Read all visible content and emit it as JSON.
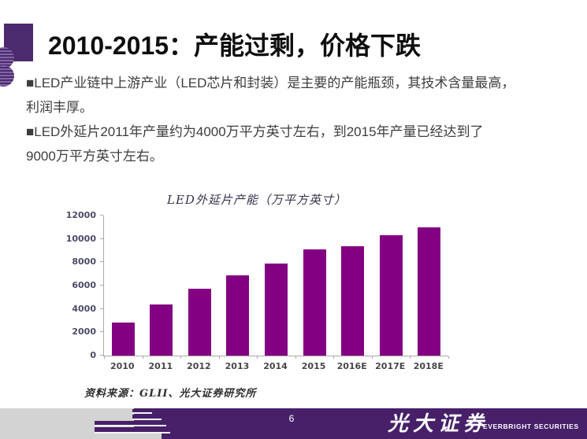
{
  "slide": {
    "title": "2010-2015：产能过剩，价格下跌"
  },
  "body": {
    "lines": [
      "■LED产业链中上游产业（LED芯片和封装）是主要的产能瓶颈，其技术含量最高，",
      "利润丰厚。",
      "■LED外延片2011年产量约为4000万平方英寸左右，到2015年产量已经达到了",
      "9000万平方英寸左右。"
    ]
  },
  "chart_data": {
    "type": "bar",
    "title": "LED外延片产能（万平方英寸）",
    "categories": [
      "2010",
      "2011",
      "2012",
      "2013",
      "2014",
      "2015",
      "2016E",
      "2017E",
      "2018E"
    ],
    "values": [
      2850,
      4400,
      5700,
      6900,
      7900,
      9100,
      9400,
      10300,
      11000
    ],
    "xlabel": "",
    "ylabel": "",
    "ylim": [
      0,
      12000
    ],
    "ytick_step": 2000,
    "bar_color": "#830082",
    "grid": false,
    "legend_position": "none"
  },
  "source_note": "资料来源：GLII、光大证券研究所",
  "footer": {
    "page_number": "6",
    "brand_cn": "光大证券",
    "brand_en": "EVERBRIGHT SECURITIES"
  },
  "colors": {
    "accent_purple": "#4b2a6e",
    "bar_purple": "#830082",
    "footer_purple": "#472069",
    "footer_gray": "#d4d3d3",
    "axis_gray": "#a9a9a9"
  }
}
